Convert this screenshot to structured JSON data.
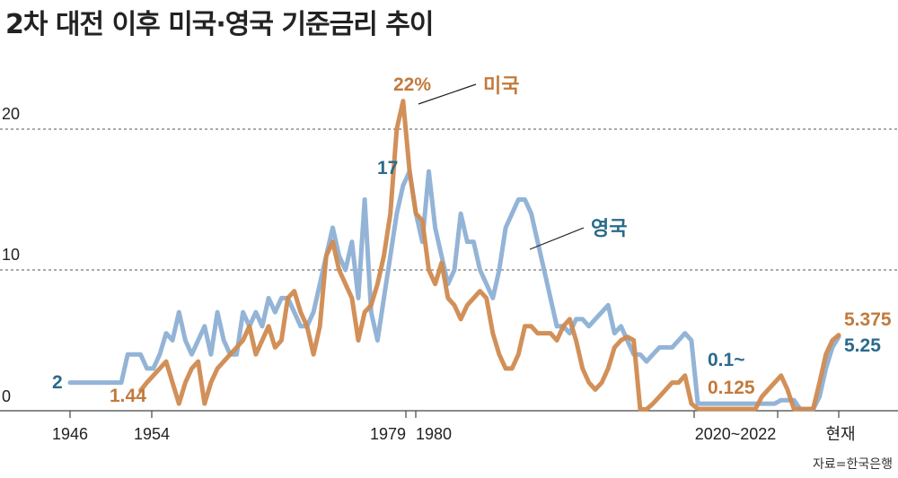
{
  "title": "2차 대전 이후 미국·영국 기준금리 추이",
  "source": "자료=한국은행",
  "colors": {
    "us": "#d08a50",
    "uk": "#93b4d6",
    "uk_label": "#2a6a8c",
    "us_label": "#c27a3c",
    "grid": "#555555",
    "axis": "#444444"
  },
  "chart_data": {
    "type": "line",
    "title": "2차 대전 이후 미국·영국 기준금리 추이",
    "ylim": [
      0,
      22.5
    ],
    "y_ticks": [
      "0",
      "10",
      "20"
    ],
    "x_ticks": [
      "1946",
      "1954",
      "1979",
      "1980",
      "2020~2022",
      "현재"
    ],
    "legend": [
      "미국",
      "영국"
    ],
    "annotations": {
      "us_peak": "22%",
      "uk_peak": "17",
      "uk_start": "2",
      "us_start": "1.44",
      "low_range_1": "0.1~",
      "low_range_2": "0.125",
      "us_current": "5.375",
      "uk_current": "5.25"
    },
    "series": [
      {
        "name": "영국",
        "points": [
          [
            0,
            2
          ],
          [
            1,
            2
          ],
          [
            2,
            2
          ],
          [
            3,
            2
          ],
          [
            4,
            2
          ],
          [
            5,
            2
          ],
          [
            6,
            2
          ],
          [
            7,
            2
          ],
          [
            8,
            2
          ],
          [
            9,
            4
          ],
          [
            10,
            4
          ],
          [
            11,
            4
          ],
          [
            12,
            3
          ],
          [
            13,
            3
          ],
          [
            14,
            4
          ],
          [
            15,
            5.5
          ],
          [
            16,
            5
          ],
          [
            17,
            7
          ],
          [
            18,
            5
          ],
          [
            19,
            4
          ],
          [
            20,
            5
          ],
          [
            21,
            6
          ],
          [
            22,
            4
          ],
          [
            23,
            7
          ],
          [
            24,
            5
          ],
          [
            25,
            4
          ],
          [
            26,
            4
          ],
          [
            27,
            7
          ],
          [
            28,
            6
          ],
          [
            29,
            7
          ],
          [
            30,
            6
          ],
          [
            31,
            8
          ],
          [
            32,
            7
          ],
          [
            33,
            8
          ],
          [
            34,
            8
          ],
          [
            35,
            7
          ],
          [
            36,
            6
          ],
          [
            37,
            6
          ],
          [
            38,
            7
          ],
          [
            39,
            9
          ],
          [
            40,
            11
          ],
          [
            41,
            13
          ],
          [
            42,
            11
          ],
          [
            43,
            10
          ],
          [
            44,
            12
          ],
          [
            45,
            8
          ],
          [
            46,
            15
          ],
          [
            47,
            7
          ],
          [
            48,
            5
          ],
          [
            49,
            8
          ],
          [
            50,
            11
          ],
          [
            51,
            14
          ],
          [
            52,
            16
          ],
          [
            53,
            17
          ],
          [
            54,
            14
          ],
          [
            55,
            12
          ],
          [
            56,
            17
          ],
          [
            57,
            13
          ],
          [
            58,
            11
          ],
          [
            59,
            9
          ],
          [
            60,
            10
          ],
          [
            61,
            14
          ],
          [
            62,
            12
          ],
          [
            63,
            12
          ],
          [
            64,
            10
          ],
          [
            65,
            9
          ],
          [
            66,
            8
          ],
          [
            67,
            10
          ],
          [
            68,
            13
          ],
          [
            69,
            14
          ],
          [
            70,
            15
          ],
          [
            71,
            15
          ],
          [
            72,
            14
          ],
          [
            73,
            12
          ],
          [
            74,
            10
          ],
          [
            75,
            8
          ],
          [
            76,
            6
          ],
          [
            77,
            6
          ],
          [
            78,
            5.5
          ],
          [
            79,
            6.5
          ],
          [
            80,
            6.5
          ],
          [
            81,
            6
          ],
          [
            82,
            6.5
          ],
          [
            83,
            7
          ],
          [
            84,
            7.5
          ],
          [
            85,
            5.5
          ],
          [
            86,
            6
          ],
          [
            87,
            5
          ],
          [
            88,
            4
          ],
          [
            89,
            4
          ],
          [
            90,
            3.5
          ],
          [
            91,
            4
          ],
          [
            92,
            4.5
          ],
          [
            93,
            4.5
          ],
          [
            94,
            4.5
          ],
          [
            95,
            5
          ],
          [
            96,
            5.5
          ],
          [
            97,
            5
          ],
          [
            98,
            0.5
          ],
          [
            99,
            0.5
          ],
          [
            100,
            0.5
          ],
          [
            101,
            0.5
          ],
          [
            102,
            0.5
          ],
          [
            103,
            0.5
          ],
          [
            104,
            0.5
          ],
          [
            105,
            0.5
          ],
          [
            106,
            0.5
          ],
          [
            107,
            0.5
          ],
          [
            108,
            0.5
          ],
          [
            109,
            0.5
          ],
          [
            110,
            0.5
          ],
          [
            111,
            0.75
          ],
          [
            112,
            0.75
          ],
          [
            113,
            0.75
          ],
          [
            114,
            0.1
          ],
          [
            115,
            0.1
          ],
          [
            116,
            0.1
          ],
          [
            117,
            1
          ],
          [
            118,
            3
          ],
          [
            119,
            4.5
          ],
          [
            120,
            5.25
          ]
        ]
      },
      {
        "name": "미국",
        "points": [
          [
            11,
            1.44
          ],
          [
            12,
            2
          ],
          [
            13,
            2.5
          ],
          [
            14,
            3
          ],
          [
            15,
            3.5
          ],
          [
            16,
            2
          ],
          [
            17,
            0.5
          ],
          [
            18,
            2
          ],
          [
            19,
            3
          ],
          [
            20,
            3.5
          ],
          [
            21,
            0.5
          ],
          [
            22,
            2
          ],
          [
            23,
            3
          ],
          [
            24,
            3.5
          ],
          [
            25,
            4
          ],
          [
            26,
            4.5
          ],
          [
            27,
            5
          ],
          [
            28,
            6
          ],
          [
            29,
            4
          ],
          [
            30,
            5
          ],
          [
            31,
            6
          ],
          [
            32,
            4.5
          ],
          [
            33,
            5
          ],
          [
            34,
            8
          ],
          [
            35,
            8.5
          ],
          [
            36,
            7
          ],
          [
            37,
            6
          ],
          [
            38,
            4
          ],
          [
            39,
            6
          ],
          [
            40,
            11
          ],
          [
            41,
            12
          ],
          [
            42,
            10
          ],
          [
            43,
            9
          ],
          [
            44,
            8
          ],
          [
            45,
            5
          ],
          [
            46,
            7
          ],
          [
            47,
            7.5
          ],
          [
            48,
            9
          ],
          [
            49,
            11
          ],
          [
            50,
            14
          ],
          [
            51,
            20
          ],
          [
            52,
            22
          ],
          [
            53,
            17
          ],
          [
            54,
            14
          ],
          [
            55,
            13.5
          ],
          [
            56,
            10
          ],
          [
            57,
            9
          ],
          [
            58,
            10.5
          ],
          [
            59,
            8
          ],
          [
            60,
            7.5
          ],
          [
            61,
            6.5
          ],
          [
            62,
            7.5
          ],
          [
            63,
            8
          ],
          [
            64,
            8.5
          ],
          [
            65,
            8
          ],
          [
            66,
            5.5
          ],
          [
            67,
            4
          ],
          [
            68,
            3
          ],
          [
            69,
            3
          ],
          [
            70,
            4
          ],
          [
            71,
            6
          ],
          [
            72,
            6
          ],
          [
            73,
            5.5
          ],
          [
            74,
            5.5
          ],
          [
            75,
            5.5
          ],
          [
            76,
            5
          ],
          [
            77,
            6
          ],
          [
            78,
            6.5
          ],
          [
            79,
            5
          ],
          [
            80,
            3
          ],
          [
            81,
            2
          ],
          [
            82,
            1.5
          ],
          [
            83,
            2
          ],
          [
            84,
            3
          ],
          [
            85,
            4.5
          ],
          [
            86,
            5
          ],
          [
            87,
            5.25
          ],
          [
            88,
            5
          ],
          [
            89,
            0.1
          ],
          [
            90,
            0.1
          ],
          [
            91,
            0.5
          ],
          [
            92,
            1
          ],
          [
            93,
            1.5
          ],
          [
            94,
            2
          ],
          [
            95,
            2
          ],
          [
            96,
            2.5
          ],
          [
            97,
            0.5
          ],
          [
            98,
            0.125
          ],
          [
            99,
            0.125
          ],
          [
            100,
            0.125
          ],
          [
            101,
            0.125
          ],
          [
            102,
            0.125
          ],
          [
            103,
            0.125
          ],
          [
            104,
            0.125
          ],
          [
            105,
            0.125
          ],
          [
            106,
            0.125
          ],
          [
            107,
            0.125
          ],
          [
            108,
            1
          ],
          [
            109,
            1.5
          ],
          [
            110,
            2
          ],
          [
            111,
            2.5
          ],
          [
            112,
            1.5
          ],
          [
            113,
            0.125
          ],
          [
            114,
            0.125
          ],
          [
            115,
            0.125
          ],
          [
            116,
            0.125
          ],
          [
            117,
            2
          ],
          [
            118,
            4
          ],
          [
            119,
            5
          ],
          [
            120,
            5.375
          ]
        ]
      }
    ]
  }
}
